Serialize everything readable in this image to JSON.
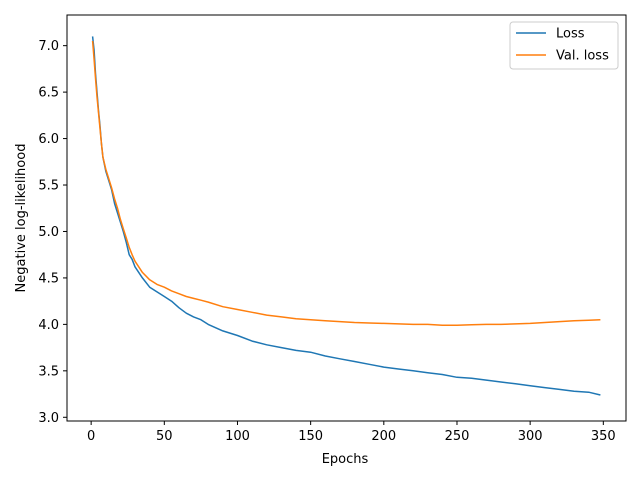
{
  "chart_data": {
    "type": "line",
    "title": "",
    "xlabel": "Epochs",
    "ylabel": "Negative log-likelihood",
    "xlim": [
      -16.5,
      365.5
    ],
    "ylim": [
      2.96,
      7.33
    ],
    "x_ticks": [
      0,
      50,
      100,
      150,
      200,
      250,
      300,
      350
    ],
    "y_ticks": [
      3.0,
      3.5,
      4.0,
      4.5,
      5.0,
      5.5,
      6.0,
      6.5,
      7.0
    ],
    "grid": false,
    "legend_position": "top-right",
    "series": [
      {
        "name": "Loss",
        "color": "#1f77b4",
        "x": [
          1,
          2,
          3,
          4,
          5,
          6,
          7,
          8,
          10,
          12,
          14,
          16,
          18,
          20,
          22,
          24,
          26,
          28,
          30,
          35,
          40,
          45,
          50,
          55,
          60,
          65,
          70,
          75,
          80,
          90,
          100,
          110,
          120,
          130,
          140,
          150,
          160,
          170,
          180,
          190,
          200,
          210,
          220,
          230,
          240,
          250,
          260,
          270,
          280,
          290,
          300,
          310,
          320,
          330,
          340,
          348
        ],
        "y": [
          7.1,
          6.95,
          6.7,
          6.5,
          6.3,
          6.15,
          5.95,
          5.8,
          5.65,
          5.55,
          5.45,
          5.3,
          5.2,
          5.1,
          5.0,
          4.88,
          4.75,
          4.7,
          4.62,
          4.5,
          4.4,
          4.35,
          4.3,
          4.25,
          4.18,
          4.12,
          4.08,
          4.05,
          4.0,
          3.93,
          3.88,
          3.82,
          3.78,
          3.75,
          3.72,
          3.7,
          3.66,
          3.63,
          3.6,
          3.57,
          3.54,
          3.52,
          3.5,
          3.48,
          3.46,
          3.43,
          3.42,
          3.4,
          3.38,
          3.36,
          3.34,
          3.32,
          3.3,
          3.28,
          3.27,
          3.24
        ]
      },
      {
        "name": "Val. loss",
        "color": "#ff7f0e",
        "x": [
          1,
          2,
          3,
          4,
          5,
          6,
          7,
          8,
          10,
          12,
          14,
          16,
          18,
          20,
          22,
          24,
          26,
          28,
          30,
          35,
          40,
          45,
          50,
          55,
          60,
          65,
          70,
          75,
          80,
          90,
          100,
          110,
          120,
          130,
          140,
          150,
          160,
          170,
          180,
          190,
          200,
          210,
          220,
          230,
          240,
          250,
          260,
          270,
          280,
          290,
          300,
          310,
          320,
          330,
          340,
          348
        ],
        "y": [
          7.05,
          6.85,
          6.65,
          6.45,
          6.28,
          6.12,
          5.95,
          5.8,
          5.67,
          5.57,
          5.47,
          5.35,
          5.25,
          5.13,
          5.03,
          4.93,
          4.83,
          4.75,
          4.68,
          4.56,
          4.48,
          4.43,
          4.4,
          4.36,
          4.33,
          4.3,
          4.28,
          4.26,
          4.24,
          4.19,
          4.16,
          4.13,
          4.1,
          4.08,
          4.06,
          4.05,
          4.04,
          4.03,
          4.02,
          4.015,
          4.01,
          4.005,
          4.0,
          4.0,
          3.99,
          3.99,
          3.995,
          4.0,
          4.0,
          4.005,
          4.01,
          4.02,
          4.03,
          4.04,
          4.045,
          4.05
        ]
      }
    ]
  }
}
